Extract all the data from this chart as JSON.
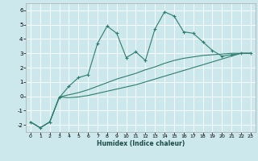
{
  "xlabel": "Humidex (Indice chaleur)",
  "bg_color": "#cce8ec",
  "grid_color": "#b0d4d8",
  "line_color": "#2e7d6e",
  "xlim": [
    -0.5,
    23.5
  ],
  "ylim": [
    -2.5,
    6.5
  ],
  "xticks": [
    0,
    1,
    2,
    3,
    4,
    5,
    6,
    7,
    8,
    9,
    10,
    11,
    12,
    13,
    14,
    15,
    16,
    17,
    18,
    19,
    20,
    21,
    22,
    23
  ],
  "yticks": [
    -2,
    -1,
    0,
    1,
    2,
    3,
    4,
    5,
    6
  ],
  "series1_x": [
    0,
    1,
    2,
    3,
    4,
    5,
    6,
    7,
    8,
    9,
    10,
    11,
    12,
    13,
    14,
    15,
    16,
    17,
    18,
    19,
    20,
    21,
    22,
    23
  ],
  "series1_y": [
    -1.8,
    -2.2,
    -1.8,
    -0.1,
    0.7,
    1.3,
    1.5,
    3.7,
    4.9,
    4.4,
    2.7,
    3.1,
    2.5,
    4.7,
    5.9,
    5.6,
    4.5,
    4.4,
    3.8,
    3.2,
    2.8,
    2.9,
    3.0,
    3.0
  ],
  "series2_x": [
    0,
    1,
    2,
    3,
    4,
    5,
    6,
    7,
    8,
    9,
    10,
    11,
    12,
    13,
    14,
    15,
    16,
    17,
    18,
    19,
    20,
    21,
    22,
    23
  ],
  "series2_y": [
    -1.8,
    -2.2,
    -1.8,
    -0.05,
    0.1,
    0.25,
    0.45,
    0.7,
    0.95,
    1.2,
    1.4,
    1.6,
    1.85,
    2.05,
    2.3,
    2.5,
    2.65,
    2.75,
    2.85,
    2.9,
    2.95,
    3.0,
    3.0,
    3.0
  ],
  "series3_x": [
    0,
    1,
    2,
    3,
    4,
    5,
    6,
    7,
    8,
    9,
    10,
    11,
    12,
    13,
    14,
    15,
    16,
    17,
    18,
    19,
    20,
    21,
    22,
    23
  ],
  "series3_y": [
    -1.8,
    -2.2,
    -1.8,
    -0.05,
    -0.1,
    -0.05,
    0.05,
    0.2,
    0.35,
    0.5,
    0.65,
    0.8,
    1.0,
    1.2,
    1.4,
    1.6,
    1.8,
    2.0,
    2.2,
    2.4,
    2.6,
    2.8,
    3.0,
    3.0
  ]
}
